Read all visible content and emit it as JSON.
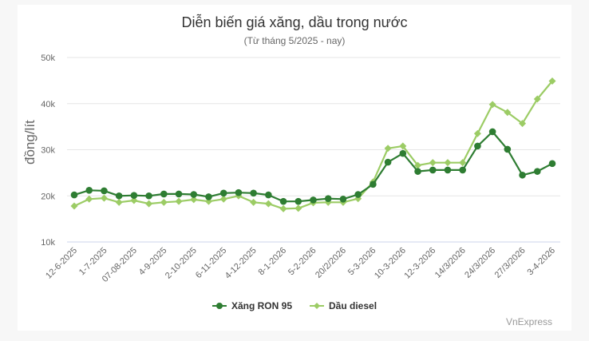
{
  "chart_data": {
    "type": "line",
    "title": "Diễn biến giá xăng, dầu trong nước",
    "subtitle": "(Từ tháng 5/2025 - nay)",
    "xlabel": "",
    "ylabel": "đồng/lít",
    "ylim": [
      10000,
      50000
    ],
    "yticks": [
      "10k",
      "20k",
      "30k",
      "40k",
      "50k"
    ],
    "ytick_values": [
      10000,
      20000,
      30000,
      40000,
      50000
    ],
    "grid": true,
    "legend_position": "bottom",
    "x_tick_labels": [
      "12-6-2025",
      "1-7-2025",
      "07-08-2025",
      "4-9-2025",
      "2-10-2025",
      "6-11-2025",
      "4-12-2025",
      "8-1-2026",
      "5-2-2026",
      "20/2/2026",
      "5-3-2026",
      "10-3-2026",
      "12-3-2026",
      "14/3/2026",
      "24/3/2026",
      "27/3/2026",
      "3-4-2026"
    ],
    "x_tick_every": 2,
    "point_count": 33,
    "series": [
      {
        "name": "Xăng RON 95",
        "color": "#2e7d32",
        "marker": "circle",
        "values": [
          20200,
          21200,
          21100,
          20000,
          20100,
          20000,
          20400,
          20400,
          20300,
          19800,
          20600,
          20700,
          20600,
          20200,
          18800,
          18800,
          19100,
          19400,
          19300,
          20300,
          22500,
          27300,
          29200,
          25300,
          25600,
          25600,
          25600,
          30800,
          33900,
          30100,
          24500,
          25300,
          27000
        ]
      },
      {
        "name": "Dầu diesel",
        "color": "#9ccc65",
        "marker": "diamond",
        "values": [
          17800,
          19300,
          19500,
          18600,
          19000,
          18300,
          18600,
          18800,
          19200,
          18800,
          19300,
          20000,
          18600,
          18300,
          17200,
          17300,
          18500,
          18600,
          18600,
          19400,
          23000,
          30300,
          30800,
          26600,
          27200,
          27200,
          27200,
          33500,
          39800,
          38100,
          35700,
          41000,
          44900
        ]
      }
    ]
  },
  "credit": "VnExpress"
}
